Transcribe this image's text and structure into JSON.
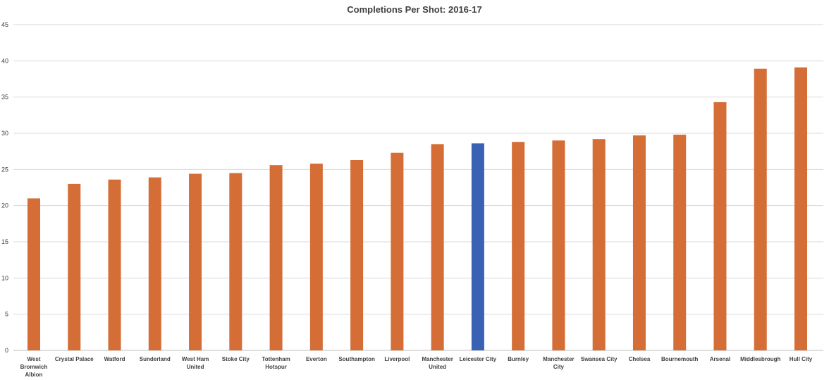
{
  "chart_data": {
    "type": "bar",
    "title": "Completions Per Shot: 2016-17",
    "categories": [
      [
        "West",
        "Bromwich",
        "Albion"
      ],
      [
        "Crystal Palace"
      ],
      [
        "Watford"
      ],
      [
        "Sunderland"
      ],
      [
        "West Ham",
        "United"
      ],
      [
        "Stoke City"
      ],
      [
        "Tottenham",
        "Hotspur"
      ],
      [
        "Everton"
      ],
      [
        "Southampton"
      ],
      [
        "Liverpool"
      ],
      [
        "Manchester",
        "United"
      ],
      [
        "Leicester City"
      ],
      [
        "Burnley"
      ],
      [
        "Manchester",
        "City"
      ],
      [
        "Swansea City"
      ],
      [
        "Chelsea"
      ],
      [
        "Bournemouth"
      ],
      [
        "Arsenal"
      ],
      [
        "Middlesbrough"
      ],
      [
        "Hull City"
      ]
    ],
    "values": [
      21.0,
      23.0,
      23.6,
      23.9,
      24.4,
      24.5,
      25.6,
      25.8,
      26.3,
      27.3,
      28.5,
      28.6,
      28.8,
      29.0,
      29.2,
      29.7,
      29.8,
      34.3,
      38.9,
      39.1
    ],
    "yticks": [
      0,
      5,
      10,
      15,
      20,
      25,
      30,
      35,
      40,
      45
    ],
    "ylim": [
      0,
      45
    ],
    "grid": true,
    "colors": {
      "default_bar": "#d46e36",
      "highlight_bar": "#3962b4"
    },
    "highlight_index": 11,
    "xlabel": "",
    "ylabel": ""
  }
}
